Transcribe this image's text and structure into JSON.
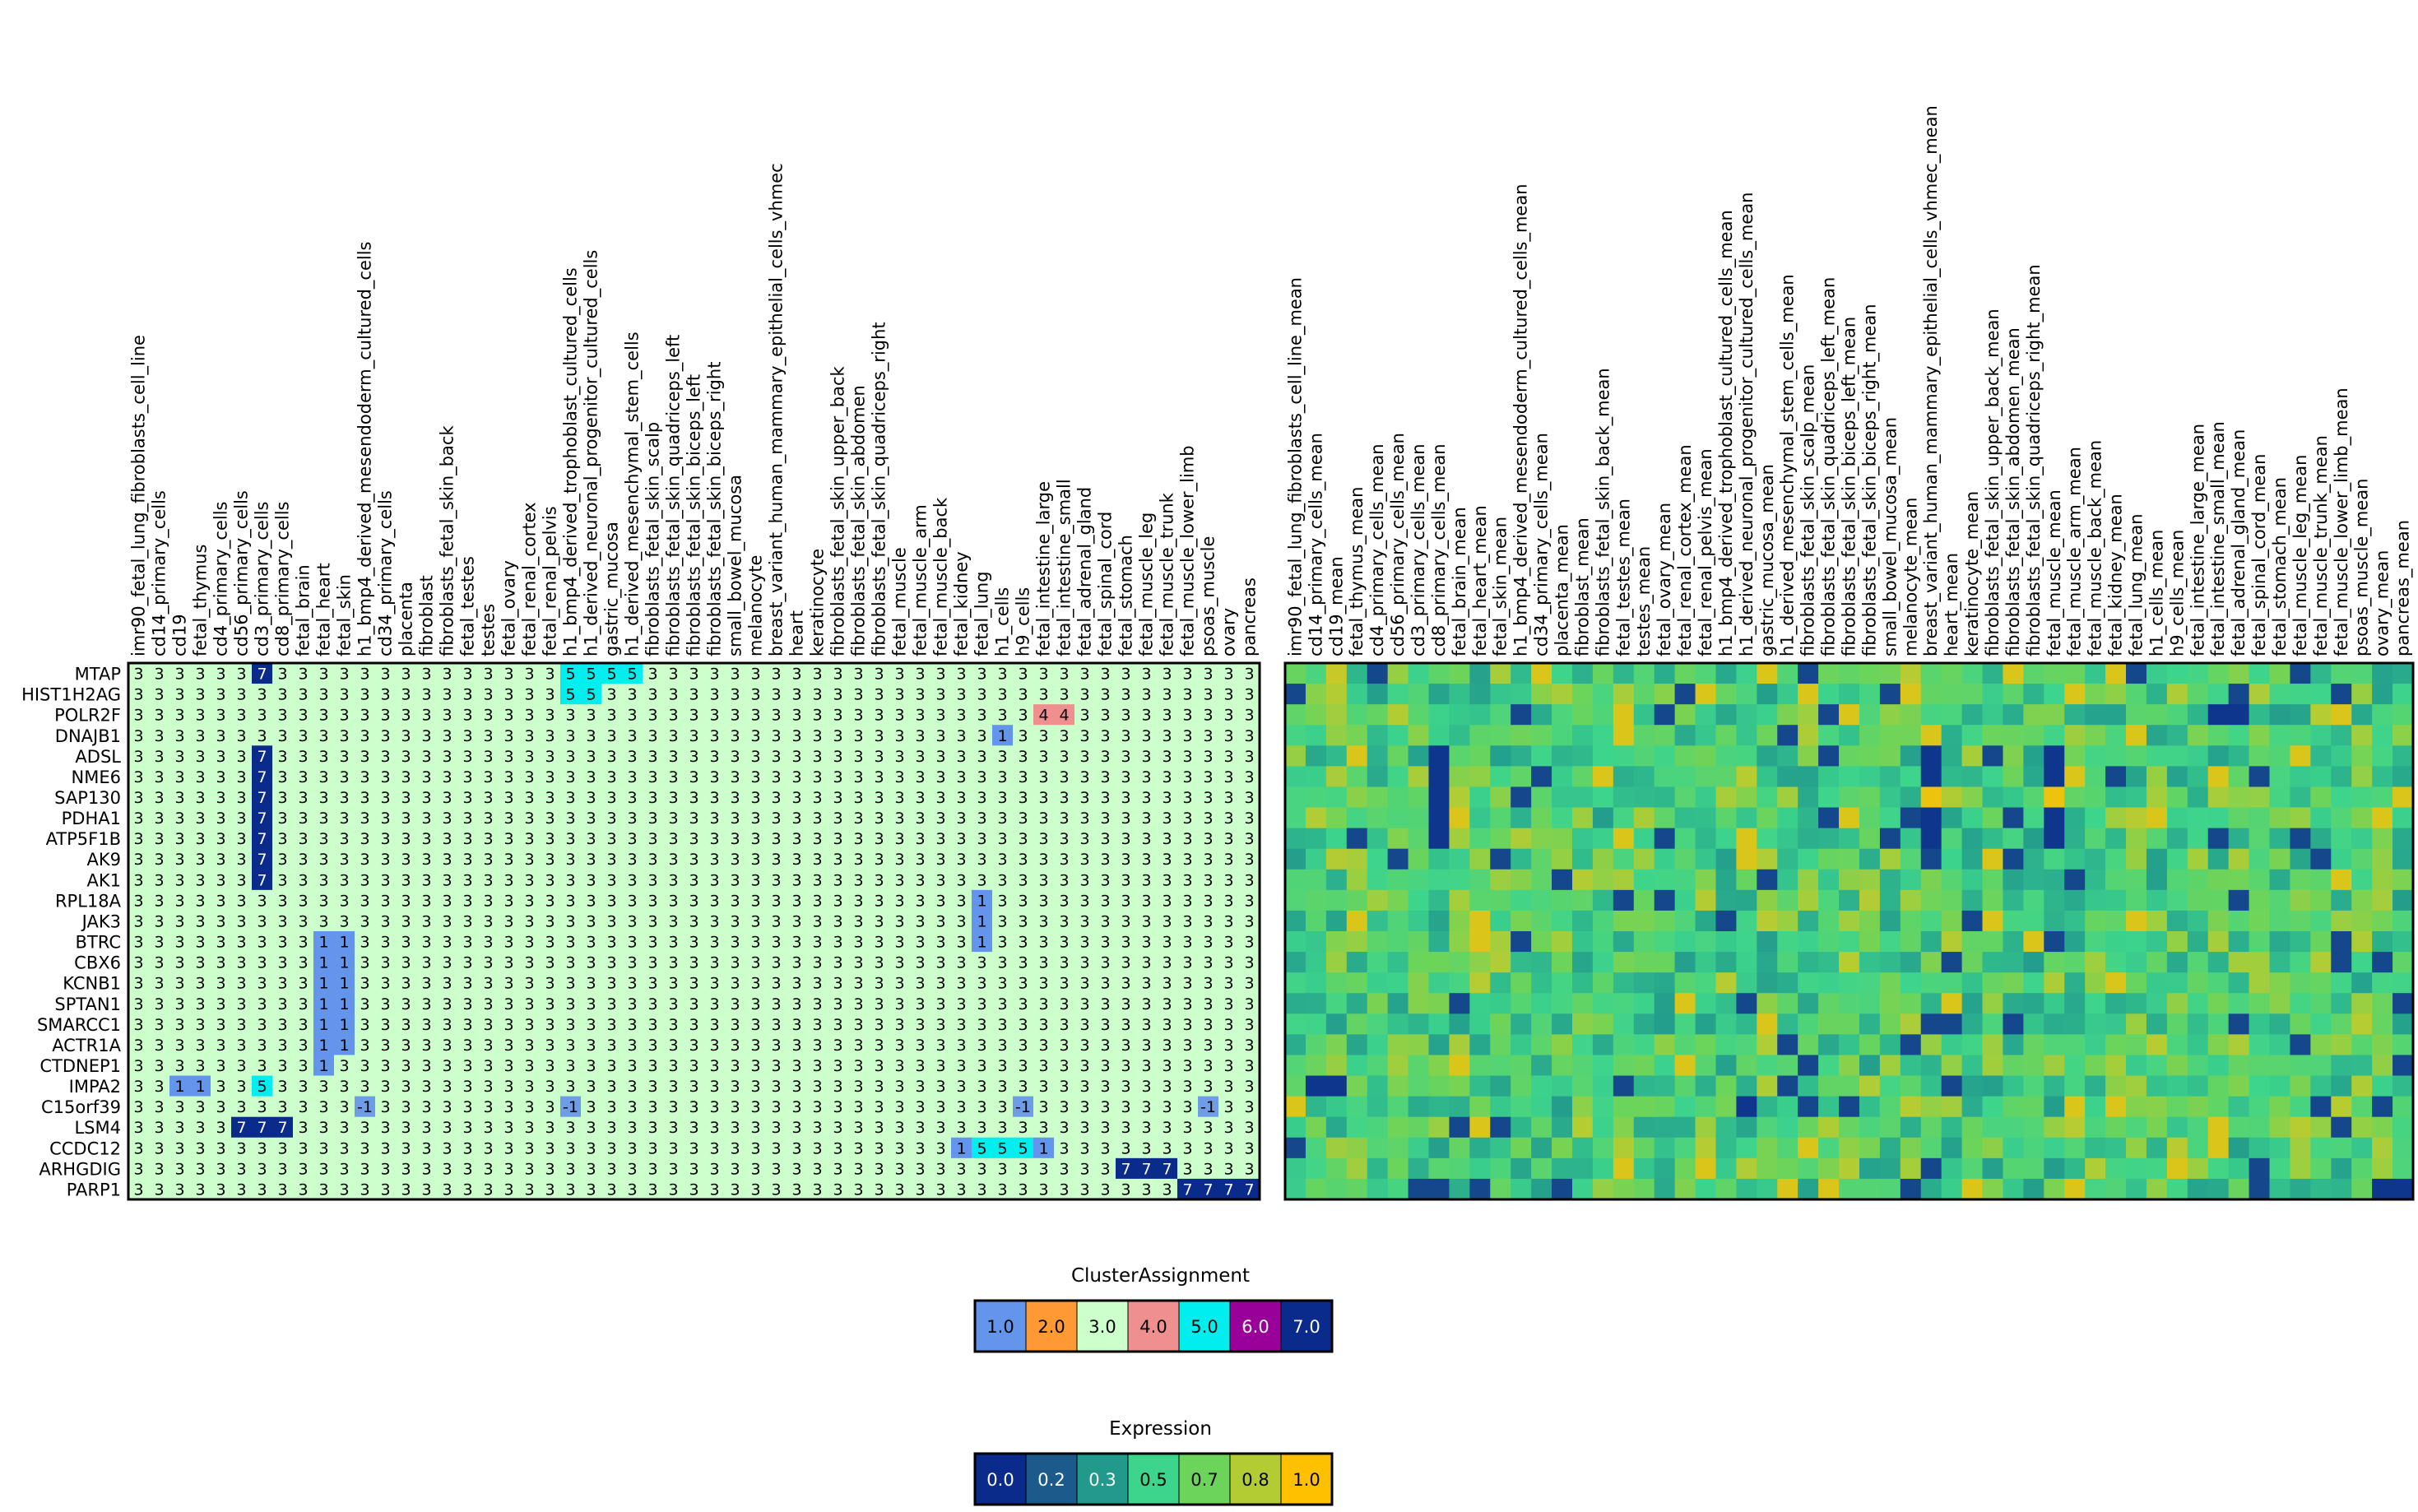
{
  "chart_data": [
    {
      "type": "heatmap",
      "panel": "cluster-assignment",
      "columns": [
        "imr90_fetal_lung_fibroblasts_cell_line",
        "cd14_primary_cells",
        "cd19",
        "fetal_thymus",
        "cd4_primary_cells",
        "cd56_primary_cells",
        "cd3_primary_cells",
        "cd8_primary_cells",
        "fetal_brain",
        "fetal_heart",
        "fetal_skin",
        "h1_bmp4_derived_mesendoderm_cultured_cells",
        "cd34_primary_cells",
        "placenta",
        "fibroblast",
        "fibroblasts_fetal_skin_back",
        "fetal_testes",
        "testes",
        "fetal_ovary",
        "fetal_renal_cortex",
        "fetal_renal_pelvis",
        "h1_bmp4_derived_trophoblast_cultured_cells",
        "h1_derived_neuronal_progenitor_cultured_cells",
        "gastric_mucosa",
        "h1_derived_mesenchymal_stem_cells",
        "fibroblasts_fetal_skin_scalp",
        "fibroblasts_fetal_skin_quadriceps_left",
        "fibroblasts_fetal_skin_biceps_left",
        "fibroblasts_fetal_skin_biceps_right",
        "small_bowel_mucosa",
        "melanocyte",
        "breast_variant_human_mammary_epithelial_cells_vhmec",
        "heart",
        "keratinocyte",
        "fibroblasts_fetal_skin_upper_back",
        "fibroblasts_fetal_skin_abdomen",
        "fibroblasts_fetal_skin_quadriceps_right",
        "fetal_muscle",
        "fetal_muscle_arm",
        "fetal_muscle_back",
        "fetal_kidney",
        "fetal_lung",
        "h1_cells",
        "h9_cells",
        "fetal_intestine_large",
        "fetal_intestine_small",
        "fetal_adrenal_gland",
        "fetal_spinal_cord",
        "fetal_stomach",
        "fetal_muscle_leg",
        "fetal_muscle_trunk",
        "fetal_muscle_lower_limb",
        "psoas_muscle",
        "ovary",
        "pancreas"
      ],
      "rows": [
        "MTAP",
        "HIST1H2AG",
        "POLR2F",
        "DNAJB1",
        "ADSL",
        "NME6",
        "SAP130",
        "PDHA1",
        "ATP5F1B",
        "AK9",
        "AK1",
        "RPL18A",
        "JAK3",
        "BTRC",
        "CBX6",
        "KCNB1",
        "SPTAN1",
        "SMARCC1",
        "ACTR1A",
        "CTDNEP1",
        "IMPA2",
        "C15orf39",
        "LSM4",
        "CCDC12",
        "ARHGDIG",
        "PARP1"
      ],
      "default_value": 3,
      "cells": [
        {
          "row": "MTAP",
          "col": "cd3_primary_cells",
          "value": 7
        },
        {
          "row": "MTAP",
          "col": "h1_bmp4_derived_trophoblast_cultured_cells",
          "value": 5
        },
        {
          "row": "MTAP",
          "col": "h1_derived_neuronal_progenitor_cultured_cells",
          "value": 5
        },
        {
          "row": "MTAP",
          "col": "gastric_mucosa",
          "value": 5
        },
        {
          "row": "MTAP",
          "col": "h1_derived_mesenchymal_stem_cells",
          "value": 5
        },
        {
          "row": "HIST1H2AG",
          "col": "h1_bmp4_derived_trophoblast_cultured_cells",
          "value": 5
        },
        {
          "row": "HIST1H2AG",
          "col": "h1_derived_neuronal_progenitor_cultured_cells",
          "value": 5
        },
        {
          "row": "POLR2F",
          "col": "fetal_intestine_large",
          "value": 4
        },
        {
          "row": "POLR2F",
          "col": "fetal_intestine_small",
          "value": 4
        },
        {
          "row": "DNAJB1",
          "col": "h1_cells",
          "value": 1
        },
        {
          "row": "ADSL",
          "col": "cd3_primary_cells",
          "value": 7
        },
        {
          "row": "NME6",
          "col": "cd3_primary_cells",
          "value": 7
        },
        {
          "row": "SAP130",
          "col": "cd3_primary_cells",
          "value": 7
        },
        {
          "row": "PDHA1",
          "col": "cd3_primary_cells",
          "value": 7
        },
        {
          "row": "ATP5F1B",
          "col": "cd3_primary_cells",
          "value": 7
        },
        {
          "row": "AK9",
          "col": "cd3_primary_cells",
          "value": 7
        },
        {
          "row": "AK1",
          "col": "cd3_primary_cells",
          "value": 7
        },
        {
          "row": "RPL18A",
          "col": "fetal_lung",
          "value": 1
        },
        {
          "row": "JAK3",
          "col": "fetal_lung",
          "value": 1
        },
        {
          "row": "BTRC",
          "col": "fetal_lung",
          "value": 1
        },
        {
          "row": "BTRC",
          "col": "fetal_heart",
          "value": 1
        },
        {
          "row": "BTRC",
          "col": "fetal_skin",
          "value": 1
        },
        {
          "row": "CBX6",
          "col": "fetal_heart",
          "value": 1
        },
        {
          "row": "CBX6",
          "col": "fetal_skin",
          "value": 1
        },
        {
          "row": "KCNB1",
          "col": "fetal_heart",
          "value": 1
        },
        {
          "row": "KCNB1",
          "col": "fetal_skin",
          "value": 1
        },
        {
          "row": "SPTAN1",
          "col": "fetal_heart",
          "value": 1
        },
        {
          "row": "SPTAN1",
          "col": "fetal_skin",
          "value": 1
        },
        {
          "row": "SMARCC1",
          "col": "fetal_heart",
          "value": 1
        },
        {
          "row": "SMARCC1",
          "col": "fetal_skin",
          "value": 1
        },
        {
          "row": "ACTR1A",
          "col": "fetal_heart",
          "value": 1
        },
        {
          "row": "ACTR1A",
          "col": "fetal_skin",
          "value": 1
        },
        {
          "row": "CTDNEP1",
          "col": "fetal_heart",
          "value": 1
        },
        {
          "row": "IMPA2",
          "col": "cd19",
          "value": 1
        },
        {
          "row": "IMPA2",
          "col": "fetal_thymus",
          "value": 1
        },
        {
          "row": "IMPA2",
          "col": "cd3_primary_cells",
          "value": 5
        },
        {
          "row": "C15orf39",
          "col": "h1_bmp4_derived_mesendoderm_cultured_cells",
          "value": -1
        },
        {
          "row": "C15orf39",
          "col": "h1_bmp4_derived_trophoblast_cultured_cells",
          "value": -1
        },
        {
          "row": "C15orf39",
          "col": "h9_cells",
          "value": -1
        },
        {
          "row": "C15orf39",
          "col": "psoas_muscle",
          "value": -1
        },
        {
          "row": "LSM4",
          "col": "cd56_primary_cells",
          "value": 7
        },
        {
          "row": "LSM4",
          "col": "cd3_primary_cells",
          "value": 7
        },
        {
          "row": "LSM4",
          "col": "cd8_primary_cells",
          "value": 7
        },
        {
          "row": "CCDC12",
          "col": "fetal_kidney",
          "value": 1
        },
        {
          "row": "CCDC12",
          "col": "fetal_lung",
          "value": 5
        },
        {
          "row": "CCDC12",
          "col": "h1_cells",
          "value": 5
        },
        {
          "row": "CCDC12",
          "col": "h9_cells",
          "value": 5
        },
        {
          "row": "CCDC12",
          "col": "fetal_intestine_large",
          "value": 1
        },
        {
          "row": "ARHGDIG",
          "col": "fetal_stomach",
          "value": 7
        },
        {
          "row": "ARHGDIG",
          "col": "fetal_muscle_leg",
          "value": 7
        },
        {
          "row": "ARHGDIG",
          "col": "fetal_muscle_trunk",
          "value": 7
        },
        {
          "row": "PARP1",
          "col": "fetal_muscle_lower_limb",
          "value": 7
        },
        {
          "row": "PARP1",
          "col": "psoas_muscle",
          "value": 7
        },
        {
          "row": "PARP1",
          "col": "ovary",
          "value": 7
        },
        {
          "row": "PARP1",
          "col": "pancreas",
          "value": 7
        }
      ],
      "colors": {
        "1": "#6495ed",
        "2": "#ff9933",
        "3": "#ccffcc",
        "4": "#f08f8f",
        "5": "#00eeee",
        "6": "#990099",
        "7": "#0a2a8c",
        "-1": "#6f9ce6"
      }
    },
    {
      "type": "heatmap",
      "panel": "expression-mean",
      "columns": [
        "imr90_fetal_lung_fibroblasts_cell_line_mean",
        "cd14_primary_cells_mean",
        "cd19_mean",
        "fetal_thymus_mean",
        "cd4_primary_cells_mean",
        "cd56_primary_cells_mean",
        "cd3_primary_cells_mean",
        "cd8_primary_cells_mean",
        "fetal_brain_mean",
        "fetal_heart_mean",
        "fetal_skin_mean",
        "h1_bmp4_derived_mesendoderm_cultured_cells_mean",
        "cd34_primary_cells_mean",
        "placenta_mean",
        "fibroblast_mean",
        "fibroblasts_fetal_skin_back_mean",
        "fetal_testes_mean",
        "testes_mean",
        "fetal_ovary_mean",
        "fetal_renal_cortex_mean",
        "fetal_renal_pelvis_mean",
        "h1_bmp4_derived_trophoblast_cultured_cells_mean",
        "h1_derived_neuronal_progenitor_cultured_cells_mean",
        "gastric_mucosa_mean",
        "h1_derived_mesenchymal_stem_cells_mean",
        "fibroblasts_fetal_skin_scalp_mean",
        "fibroblasts_fetal_skin_quadriceps_left_mean",
        "fibroblasts_fetal_skin_biceps_left_mean",
        "fibroblasts_fetal_skin_biceps_right_mean",
        "small_bowel_mucosa_mean",
        "melanocyte_mean",
        "breast_variant_human_mammary_epithelial_cells_vhmec_mean",
        "heart_mean",
        "keratinocyte_mean",
        "fibroblasts_fetal_skin_upper_back_mean",
        "fibroblasts_fetal_skin_abdomen_mean",
        "fibroblasts_fetal_skin_quadriceps_right_mean",
        "fetal_muscle_mean",
        "fetal_muscle_arm_mean",
        "fetal_muscle_back_mean",
        "fetal_kidney_mean",
        "fetal_lung_mean",
        "h1_cells_mean",
        "h9_cells_mean",
        "fetal_intestine_large_mean",
        "fetal_intestine_small_mean",
        "fetal_adrenal_gland_mean",
        "fetal_spinal_cord_mean",
        "fetal_stomach_mean",
        "fetal_muscle_leg_mean",
        "fetal_muscle_trunk_mean",
        "fetal_muscle_lower_limb_mean",
        "psoas_muscle_mean",
        "ovary_mean",
        "pancreas_mean"
      ],
      "rows": [
        "MTAP",
        "HIST1H2AG",
        "POLR2F",
        "DNAJB1",
        "ADSL",
        "NME6",
        "SAP130",
        "PDHA1",
        "ATP5F1B",
        "AK9",
        "AK1",
        "RPL18A",
        "JAK3",
        "BTRC",
        "CBX6",
        "KCNB1",
        "SPTAN1",
        "SMARCC1",
        "ACTR1A",
        "CTDNEP1",
        "IMPA2",
        "C15orf39",
        "LSM4",
        "CCDC12",
        "ARHGDIG",
        "PARP1"
      ],
      "value_range": [
        0,
        1
      ],
      "values_note_free": true,
      "strong_low_cells": [
        {
          "row": "MTAP",
          "col": "cd19_mean",
          "value": 0.85
        },
        {
          "row": "POLR2F",
          "col": "fetal_intestine_small_mean",
          "value": 0.05
        },
        {
          "row": "POLR2F",
          "col": "fetal_adrenal_gland_mean",
          "value": 0.05
        },
        {
          "row": "ADSL",
          "col": "cd8_primary_cells_mean",
          "value": 0.05
        },
        {
          "row": "NME6",
          "col": "cd8_primary_cells_mean",
          "value": 0.05
        },
        {
          "row": "SAP130",
          "col": "cd8_primary_cells_mean",
          "value": 0.05
        },
        {
          "row": "PDHA1",
          "col": "cd8_primary_cells_mean",
          "value": 0.05
        },
        {
          "row": "ATP5F1B",
          "col": "cd8_primary_cells_mean",
          "value": 0.05
        },
        {
          "row": "ADSL",
          "col": "breast_variant_human_mammary_epithelial_cells_vhmec_mean",
          "value": 0.05
        },
        {
          "row": "NME6",
          "col": "breast_variant_human_mammary_epithelial_cells_vhmec_mean",
          "value": 0.05
        },
        {
          "row": "SAP130",
          "col": "breast_variant_human_mammary_epithelial_cells_vhmec_mean",
          "value": 0.95
        },
        {
          "row": "PDHA1",
          "col": "breast_variant_human_mammary_epithelial_cells_vhmec_mean",
          "value": 0.05
        },
        {
          "row": "ATP5F1B",
          "col": "breast_variant_human_mammary_epithelial_cells_vhmec_mean",
          "value": 0.05
        },
        {
          "row": "ADSL",
          "col": "fetal_muscle_mean",
          "value": 0.05
        },
        {
          "row": "NME6",
          "col": "fetal_muscle_mean",
          "value": 0.05
        },
        {
          "row": "SAP130",
          "col": "fetal_muscle_mean",
          "value": 0.95
        },
        {
          "row": "PDHA1",
          "col": "fetal_muscle_mean",
          "value": 0.05
        },
        {
          "row": "ATP5F1B",
          "col": "fetal_muscle_mean",
          "value": 0.05
        },
        {
          "row": "IMPA2",
          "col": "cd14_primary_cells_mean",
          "value": 0.05
        },
        {
          "row": "IMPA2",
          "col": "cd19_mean",
          "value": 0.05
        },
        {
          "row": "C15orf39",
          "col": "h1_derived_neuronal_progenitor_cultured_cells_mean",
          "value": 0.05
        },
        {
          "row": "PARP1",
          "col": "ovary_mean",
          "value": 0.05
        },
        {
          "row": "PARP1",
          "col": "pancreas_mean",
          "value": 0.05
        }
      ],
      "seed": 17
    }
  ],
  "legend_cluster": {
    "title": "ClusterAssignment",
    "entries": [
      {
        "label": "1.0",
        "color": "#6495ed",
        "text": "#000000"
      },
      {
        "label": "2.0",
        "color": "#ff9933",
        "text": "#000000"
      },
      {
        "label": "3.0",
        "color": "#ccffcc",
        "text": "#000000"
      },
      {
        "label": "4.0",
        "color": "#f08f8f",
        "text": "#000000"
      },
      {
        "label": "5.0",
        "color": "#00eeee",
        "text": "#000000"
      },
      {
        "label": "6.0",
        "color": "#990099",
        "text": "#ffffff"
      },
      {
        "label": "7.0",
        "color": "#0a2a8c",
        "text": "#ffffff"
      }
    ]
  },
  "legend_expression": {
    "title": "Expression",
    "entries": [
      {
        "label": "0.0",
        "color": "#0a2a8c",
        "text": "#ffffff"
      },
      {
        "label": "0.2",
        "color": "#1b5a8a",
        "text": "#ffffff"
      },
      {
        "label": "0.3",
        "color": "#219a8c",
        "text": "#ffffff"
      },
      {
        "label": "0.5",
        "color": "#3dd48c",
        "text": "#000000"
      },
      {
        "label": "0.7",
        "color": "#6cd45a",
        "text": "#000000"
      },
      {
        "label": "0.8",
        "color": "#b4cc33",
        "text": "#000000"
      },
      {
        "label": "1.0",
        "color": "#ffc000",
        "text": "#000000"
      }
    ]
  }
}
